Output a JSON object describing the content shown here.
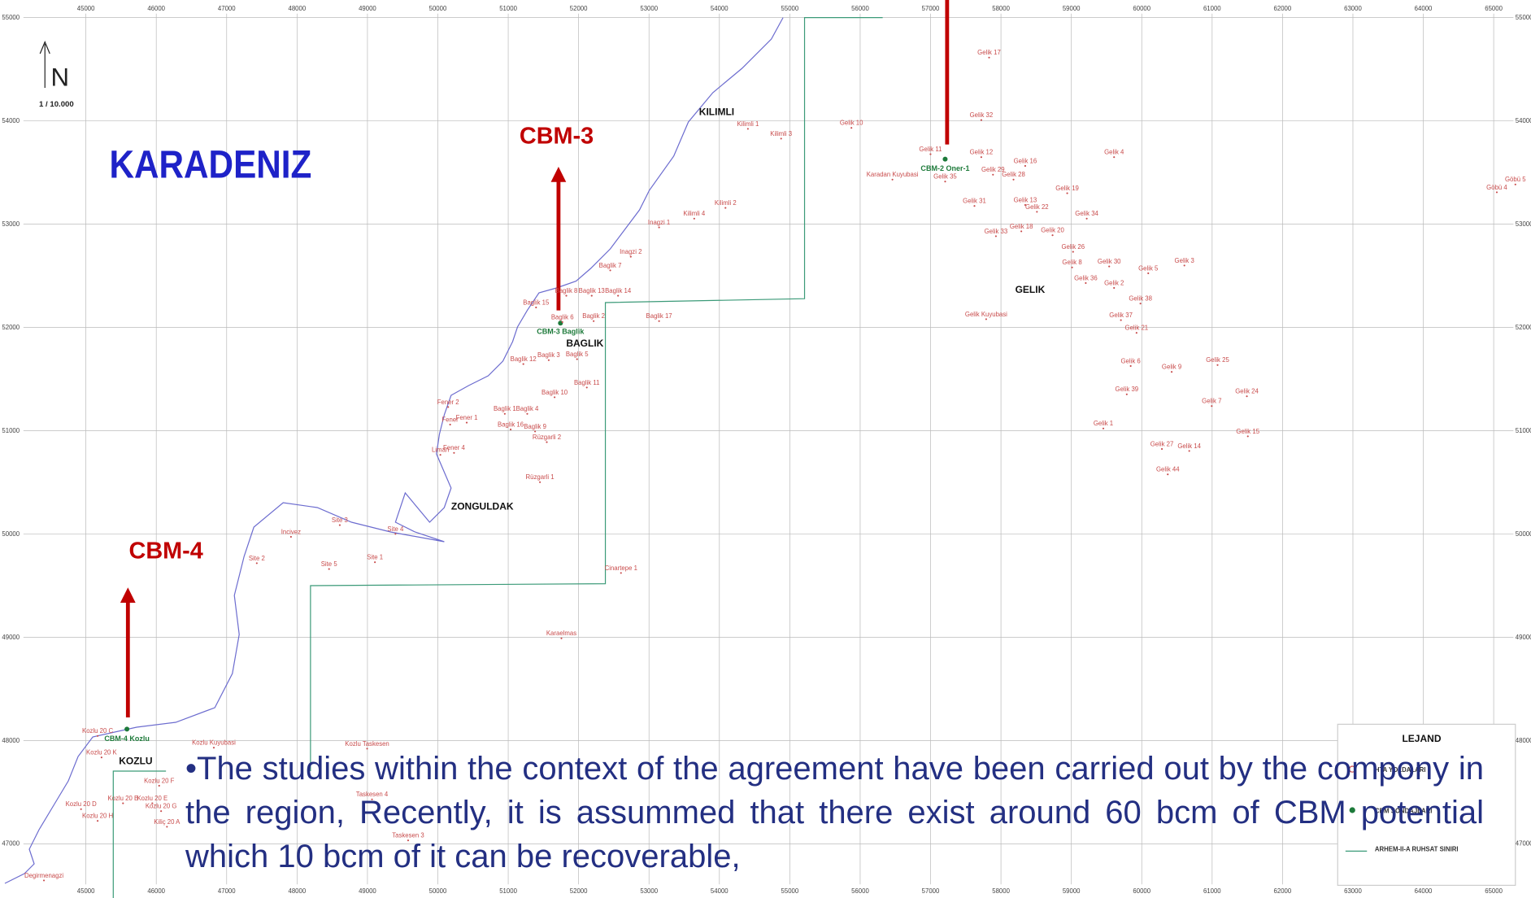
{
  "north": "N",
  "scale": "1 / 10.000",
  "sea": "KARADENIZ",
  "callouts": [
    "CBM-3",
    "CBM-4"
  ],
  "grid": {
    "xlim": [
      43780,
      65530
    ],
    "ylim": [
      46475,
      55170
    ],
    "xticks": [
      45000,
      46000,
      47000,
      48000,
      49000,
      50000,
      51000,
      52000,
      53000,
      54000,
      55000,
      56000,
      57000,
      58000,
      59000,
      60000,
      61000,
      62000,
      63000,
      64000,
      65000
    ],
    "yticks": [
      47000,
      48000,
      49000,
      50000,
      51000,
      52000,
      53000,
      54000,
      55000
    ]
  },
  "places": [
    "KILIMLI",
    "GELIK",
    "BAGLIK",
    "ZONGULDAK",
    "KOZLU"
  ],
  "boreholes": [
    "CBM-2 Oner-1",
    "CBM-3 Baglik",
    "CBM-4 Kozlu"
  ],
  "wells": [
    "Gelik 17",
    "Gelik 32",
    "Gelik 10",
    "Kilimli 1",
    "Kilimli 3",
    "Gelik 11",
    "Gelik 12",
    "Gelik 16",
    "Gelik 4",
    "Gelik 29",
    "Gelik 28",
    "Karadan Kuyubasi",
    "Gelik 35",
    "Gelik 19",
    "Gelik 31",
    "Gelik 13",
    "Gelik 22",
    "Gelik 34",
    "Kilimli 2",
    "Kilimli 4",
    "Inagzi 1",
    "Gelik 33",
    "Gelik 18",
    "Gelik 20",
    "Inagzi 2",
    "Gelik 26",
    "Baglik 7",
    "Gelik 8",
    "Gelik 30",
    "Gelik 5",
    "Gelik 3",
    "Gelik 36",
    "Gelik 2",
    "Baglik 8",
    "Baglik 13",
    "Baglik 14",
    "Baglik 15",
    "Gelik 38",
    "Baglik 6",
    "Baglik 2",
    "Baglik 17",
    "Gelik Kuyubasi",
    "Gelik 37",
    "Gelik 21",
    "Baglik 12",
    "Baglik 3",
    "Baglik 5",
    "Gelik 6",
    "Gelik 9",
    "Gelik 25",
    "Baglik 11",
    "Baglik 10",
    "Gelik 39",
    "Gelik 24",
    "Gelik 7",
    "Fener 2",
    "Baglik 1",
    "Baglik 4",
    "Fener",
    "Fener 1",
    "Baglik 16",
    "Baglik 9",
    "Rüzgarli 2",
    "Gelik 1",
    "Gelik 15",
    "Gelik 27",
    "Gelik 14",
    "Liman",
    "Fener 4",
    "Gelik 44",
    "Rüzgarli 1",
    "Site 3",
    "Site 4",
    "Incivez",
    "Site 2",
    "Site 1",
    "Site 5",
    "Cinartepe 1",
    "Karaelmas",
    "Kozlu 20 C",
    "Kozlu Kuyubasi",
    "Kozlu Taskesen",
    "Kozlu 20 K",
    "Kozlu 20 F",
    "Taskesen 4",
    "Kozlu 20 D",
    "Kozlu 20 B",
    "Kozlu 20 E",
    "Kozlu 20 G",
    "Kozlu 20 H",
    "Kiliç 20 A",
    "Taskesen 3",
    "Degirmenagzi",
    "Göbü 4",
    "Göbü 5"
  ],
  "legend": {
    "title": "LEJAND",
    "items": [
      "HTA YOLDALARI",
      "CBM SONDAJLARI",
      "ARHEM-II-A RUHSAT SINIRI"
    ]
  },
  "text": "•The studies within the context of the agreement have been carried out by the compony in the region, Recently, it is assummed that there exist around 60 bcm of CBM potential which 10 bcm of it can be recoverable,"
}
